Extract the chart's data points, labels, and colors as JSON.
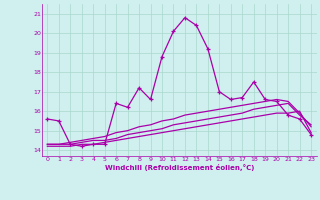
{
  "title": "",
  "xlabel": "Windchill (Refroidissement éolien,°C)",
  "bg_color": "#cff0ee",
  "grid_color": "#aad8cc",
  "line_color": "#aa00aa",
  "x_ticks": [
    0,
    1,
    2,
    3,
    4,
    5,
    6,
    7,
    8,
    9,
    10,
    11,
    12,
    13,
    14,
    15,
    16,
    17,
    18,
    19,
    20,
    21,
    22,
    23
  ],
  "y_ticks": [
    14,
    15,
    16,
    17,
    18,
    19,
    20,
    21
  ],
  "xlim": [
    -0.5,
    23.5
  ],
  "ylim": [
    13.7,
    21.5
  ],
  "line1_x": [
    0,
    1,
    2,
    3,
    4,
    5,
    6,
    7,
    8,
    9,
    10,
    11,
    12,
    13,
    14,
    15,
    16,
    17,
    18,
    19,
    20,
    21,
    22,
    23
  ],
  "line1_y": [
    15.6,
    15.5,
    14.3,
    14.2,
    14.3,
    14.3,
    16.4,
    16.2,
    17.2,
    16.6,
    18.8,
    20.1,
    20.8,
    20.4,
    19.2,
    17.0,
    16.6,
    16.7,
    17.5,
    16.6,
    16.5,
    15.8,
    15.6,
    14.8
  ],
  "line2_x": [
    0,
    1,
    2,
    3,
    4,
    5,
    6,
    7,
    8,
    9,
    10,
    11,
    12,
    13,
    14,
    15,
    16,
    17,
    18,
    19,
    20,
    21,
    22,
    23
  ],
  "line2_y": [
    14.2,
    14.2,
    14.2,
    14.3,
    14.3,
    14.4,
    14.5,
    14.6,
    14.7,
    14.8,
    14.9,
    15.0,
    15.1,
    15.2,
    15.3,
    15.4,
    15.5,
    15.6,
    15.7,
    15.8,
    15.9,
    15.9,
    16.0,
    14.9
  ],
  "line3_x": [
    0,
    1,
    2,
    3,
    4,
    5,
    6,
    7,
    8,
    9,
    10,
    11,
    12,
    13,
    14,
    15,
    16,
    17,
    18,
    19,
    20,
    21,
    22,
    23
  ],
  "line3_y": [
    14.3,
    14.3,
    14.3,
    14.4,
    14.5,
    14.5,
    14.6,
    14.8,
    14.9,
    15.0,
    15.1,
    15.3,
    15.4,
    15.5,
    15.6,
    15.7,
    15.8,
    15.9,
    16.1,
    16.2,
    16.3,
    16.4,
    15.8,
    15.3
  ],
  "line4_x": [
    0,
    1,
    2,
    3,
    4,
    5,
    6,
    7,
    8,
    9,
    10,
    11,
    12,
    13,
    14,
    15,
    16,
    17,
    18,
    19,
    20,
    21,
    22,
    23
  ],
  "line4_y": [
    14.3,
    14.3,
    14.4,
    14.5,
    14.6,
    14.7,
    14.9,
    15.0,
    15.2,
    15.3,
    15.5,
    15.6,
    15.8,
    15.9,
    16.0,
    16.1,
    16.2,
    16.3,
    16.4,
    16.5,
    16.6,
    16.5,
    15.9,
    15.2
  ]
}
